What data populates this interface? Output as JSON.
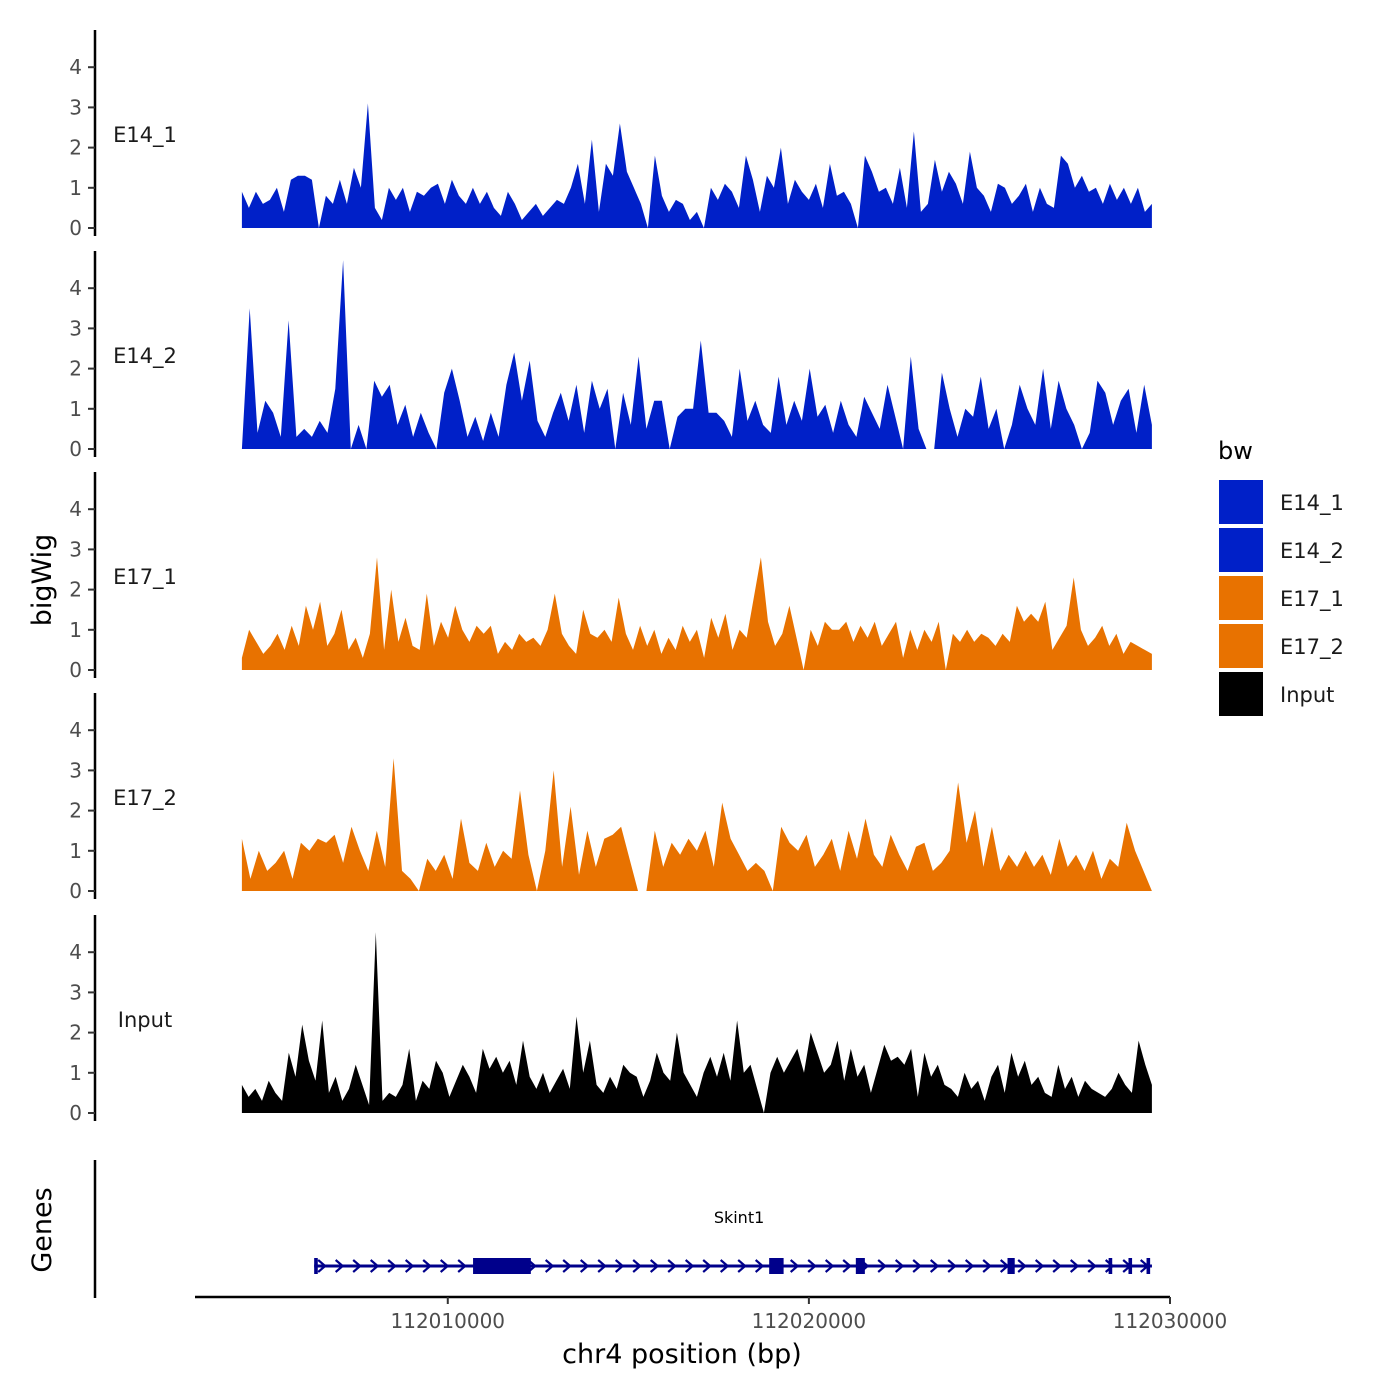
{
  "chart_data": {
    "type": "area",
    "ylabel": "bigWig",
    "xlabel": "chr4 position (bp)",
    "xlim": [
      112003000,
      112030000
    ],
    "x_ticks": [
      112010000,
      112020000,
      112030000
    ],
    "x_tick_labels": [
      "112010000",
      "112020000",
      "112030000"
    ],
    "ylim": [
      0,
      5
    ],
    "y_ticks": [
      0,
      1,
      2,
      3,
      4
    ],
    "y_tick_labels": [
      "0",
      "1",
      "2",
      "3",
      "4"
    ],
    "track_start": 112004300,
    "track_end": 112029500,
    "series": [
      {
        "name": "E14_1",
        "color": "#0020c8",
        "values": [
          0.9,
          0.5,
          0.9,
          0.6,
          0.7,
          1.0,
          0.4,
          1.2,
          1.3,
          1.3,
          1.2,
          0.0,
          0.8,
          0.6,
          1.2,
          0.6,
          1.5,
          1.0,
          3.1,
          0.5,
          0.2,
          1.0,
          0.7,
          1.0,
          0.4,
          0.9,
          0.8,
          1.0,
          1.1,
          0.6,
          1.2,
          0.8,
          0.6,
          1.0,
          0.6,
          0.9,
          0.5,
          0.3,
          0.9,
          0.6,
          0.2,
          0.4,
          0.6,
          0.3,
          0.5,
          0.7,
          0.6,
          1.0,
          1.6,
          0.6,
          2.2,
          0.4,
          1.6,
          1.3,
          2.6,
          1.4,
          1.0,
          0.6,
          0.0,
          1.8,
          0.8,
          0.4,
          0.7,
          0.6,
          0.2,
          0.4,
          0.0,
          1.0,
          0.7,
          1.1,
          0.9,
          0.5,
          1.8,
          1.2,
          0.4,
          1.3,
          1.0,
          2.0,
          0.6,
          1.2,
          0.9,
          0.7,
          1.1,
          0.5,
          1.6,
          0.8,
          0.9,
          0.6,
          0.0,
          1.8,
          1.4,
          0.9,
          1.0,
          0.6,
          1.5,
          0.5,
          2.4,
          0.4,
          0.6,
          1.7,
          0.9,
          1.4,
          1.1,
          0.6,
          1.9,
          1.0,
          0.8,
          0.4,
          1.1,
          1.0,
          0.6,
          0.8,
          1.1,
          0.4,
          1.0,
          0.6,
          0.5,
          1.8,
          1.6,
          1.0,
          1.3,
          0.9,
          1.0,
          0.6,
          1.1,
          0.7,
          1.0,
          0.6,
          1.0,
          0.4,
          0.6
        ]
      },
      {
        "name": "E14_2",
        "color": "#0020c8",
        "values": [
          0.0,
          3.5,
          0.4,
          1.2,
          0.9,
          0.3,
          3.2,
          0.3,
          0.5,
          0.3,
          0.7,
          0.4,
          1.5,
          4.7,
          0.0,
          0.6,
          0.0,
          1.7,
          1.3,
          1.6,
          0.6,
          1.1,
          0.3,
          0.9,
          0.4,
          0.0,
          1.4,
          2.0,
          1.2,
          0.3,
          0.8,
          0.2,
          0.9,
          0.3,
          1.6,
          2.4,
          1.2,
          2.2,
          0.7,
          0.3,
          0.9,
          1.4,
          0.7,
          1.6,
          0.4,
          1.7,
          1.0,
          1.5,
          0.0,
          1.4,
          0.6,
          2.3,
          0.5,
          1.2,
          1.2,
          0.0,
          0.8,
          1.0,
          1.0,
          2.7,
          0.9,
          0.9,
          0.7,
          0.3,
          2.0,
          0.7,
          1.2,
          0.6,
          0.4,
          1.8,
          0.6,
          1.2,
          0.7,
          2.0,
          0.8,
          1.1,
          0.4,
          1.2,
          0.6,
          0.3,
          1.3,
          0.9,
          0.5,
          1.6,
          0.8,
          0.0,
          2.3,
          0.5,
          0.0,
          0.0,
          1.9,
          1.0,
          0.3,
          1.0,
          0.8,
          1.8,
          0.5,
          1.0,
          0.0,
          0.6,
          1.6,
          1.0,
          0.6,
          2.0,
          0.5,
          1.7,
          1.0,
          0.6,
          0.0,
          0.4,
          1.7,
          1.4,
          0.6,
          1.2,
          1.5,
          0.4,
          1.6,
          0.6
        ]
      },
      {
        "name": "E17_1",
        "color": "#e87200",
        "values": [
          0.3,
          1.0,
          0.7,
          0.4,
          0.6,
          0.9,
          0.5,
          1.1,
          0.6,
          1.6,
          1.0,
          1.7,
          0.6,
          0.9,
          1.5,
          0.5,
          0.8,
          0.3,
          0.9,
          2.8,
          0.5,
          2.0,
          0.7,
          1.3,
          0.6,
          0.5,
          1.9,
          0.6,
          1.2,
          0.8,
          1.6,
          1.0,
          0.7,
          1.1,
          0.9,
          1.1,
          0.4,
          0.7,
          0.5,
          0.9,
          0.7,
          0.8,
          0.6,
          1.0,
          1.9,
          0.9,
          0.6,
          0.4,
          1.5,
          0.9,
          0.8,
          1.0,
          0.7,
          1.8,
          0.9,
          0.5,
          1.1,
          0.6,
          1.0,
          0.4,
          0.8,
          0.5,
          1.1,
          0.7,
          1.0,
          0.3,
          1.3,
          0.8,
          1.4,
          0.5,
          1.0,
          0.8,
          1.8,
          2.8,
          1.2,
          0.6,
          0.9,
          1.6,
          0.8,
          0.0,
          1.0,
          0.6,
          1.2,
          1.0,
          1.0,
          1.2,
          0.7,
          1.1,
          0.8,
          1.2,
          0.6,
          0.9,
          1.2,
          0.3,
          1.0,
          0.5,
          1.0,
          0.7,
          1.2,
          0.0,
          0.9,
          0.7,
          1.0,
          0.7,
          0.9,
          0.8,
          0.6,
          0.9,
          0.7,
          1.6,
          1.2,
          1.4,
          1.2,
          1.7,
          0.5,
          0.8,
          1.1,
          2.3,
          1.0,
          0.6,
          0.8,
          1.1,
          0.6,
          0.9,
          0.4,
          0.7,
          0.6,
          0.5,
          0.4
        ]
      },
      {
        "name": "E17_2",
        "color": "#e87200",
        "values": [
          1.3,
          0.3,
          1.0,
          0.5,
          0.7,
          1.0,
          0.3,
          1.2,
          1.0,
          1.3,
          1.2,
          1.4,
          0.7,
          1.6,
          1.0,
          0.5,
          1.5,
          0.6,
          3.3,
          0.5,
          0.3,
          0.0,
          0.8,
          0.5,
          0.9,
          0.3,
          1.8,
          0.7,
          0.5,
          1.2,
          0.6,
          1.0,
          0.8,
          2.5,
          0.9,
          0.0,
          1.0,
          3.0,
          0.6,
          2.1,
          0.4,
          1.5,
          0.6,
          1.3,
          1.4,
          1.6,
          0.8,
          0.0,
          0.0,
          1.5,
          0.6,
          1.2,
          0.9,
          1.3,
          1.0,
          1.5,
          0.6,
          2.2,
          1.3,
          0.9,
          0.5,
          0.7,
          0.5,
          0.0,
          1.6,
          1.2,
          1.0,
          1.4,
          0.6,
          0.9,
          1.3,
          0.5,
          1.5,
          0.8,
          1.8,
          0.9,
          0.6,
          1.4,
          0.9,
          0.5,
          1.1,
          1.2,
          0.5,
          0.7,
          1.0,
          2.7,
          1.2,
          2.0,
          0.6,
          1.6,
          0.5,
          0.9,
          0.6,
          1.0,
          0.6,
          0.9,
          0.4,
          1.3,
          0.6,
          0.9,
          0.5,
          1.0,
          0.3,
          0.8,
          0.6,
          1.7,
          1.0,
          0.5,
          0.0
        ]
      },
      {
        "name": "Input",
        "color": "#000000",
        "values": [
          0.7,
          0.4,
          0.6,
          0.3,
          0.8,
          0.5,
          0.3,
          1.5,
          0.9,
          2.2,
          1.3,
          0.8,
          2.3,
          0.5,
          0.9,
          0.3,
          0.6,
          1.2,
          0.7,
          0.2,
          4.5,
          0.3,
          0.5,
          0.4,
          0.7,
          1.6,
          0.3,
          0.8,
          0.6,
          1.3,
          1.0,
          0.4,
          0.8,
          1.2,
          0.9,
          0.5,
          1.6,
          1.1,
          1.4,
          1.0,
          1.3,
          0.7,
          1.8,
          0.9,
          0.6,
          1.0,
          0.5,
          0.8,
          1.1,
          0.6,
          2.4,
          1.0,
          1.8,
          0.7,
          0.5,
          0.9,
          0.6,
          1.2,
          1.0,
          0.9,
          0.4,
          0.8,
          1.5,
          1.0,
          0.8,
          2.0,
          1.0,
          0.7,
          0.4,
          1.0,
          1.4,
          0.9,
          1.5,
          0.8,
          2.3,
          1.0,
          1.2,
          0.6,
          0.0,
          1.0,
          1.4,
          1.0,
          1.3,
          1.6,
          1.0,
          2.0,
          1.5,
          1.0,
          1.2,
          1.8,
          0.8,
          1.6,
          0.9,
          1.2,
          0.5,
          1.1,
          1.7,
          1.3,
          1.4,
          1.2,
          1.6,
          0.4,
          1.5,
          0.9,
          1.2,
          0.7,
          0.6,
          0.4,
          1.0,
          0.6,
          0.8,
          0.3,
          0.9,
          1.2,
          0.5,
          1.5,
          0.9,
          1.3,
          0.7,
          0.9,
          0.5,
          0.4,
          1.2,
          0.6,
          0.9,
          0.4,
          0.8,
          0.6,
          0.5,
          0.4,
          0.6,
          1.0,
          0.7,
          0.5,
          1.8,
          1.2,
          0.7
        ]
      }
    ],
    "legend": {
      "title": "bw",
      "position": "right",
      "entries": [
        {
          "label": "E14_1",
          "color": "#0020c8"
        },
        {
          "label": "E14_2",
          "color": "#0020c8"
        },
        {
          "label": "E17_1",
          "color": "#e87200"
        },
        {
          "label": "E17_2",
          "color": "#e87200"
        },
        {
          "label": "Input",
          "color": "#000000"
        }
      ]
    },
    "genes_track": {
      "label": "Genes",
      "gene_name": "Skint1",
      "color": "#00008b",
      "strand": "+",
      "start": 112006300,
      "end": 112029500,
      "exons": [
        {
          "start": 112006300,
          "end": 112006400
        },
        {
          "start": 112010700,
          "end": 112012300
        },
        {
          "start": 112018900,
          "end": 112019300
        },
        {
          "start": 112021300,
          "end": 112021550
        },
        {
          "start": 112025500,
          "end": 112025700
        },
        {
          "start": 112028300,
          "end": 112028400
        },
        {
          "start": 112028850,
          "end": 112028950
        },
        {
          "start": 112029350,
          "end": 112029450
        }
      ]
    }
  }
}
